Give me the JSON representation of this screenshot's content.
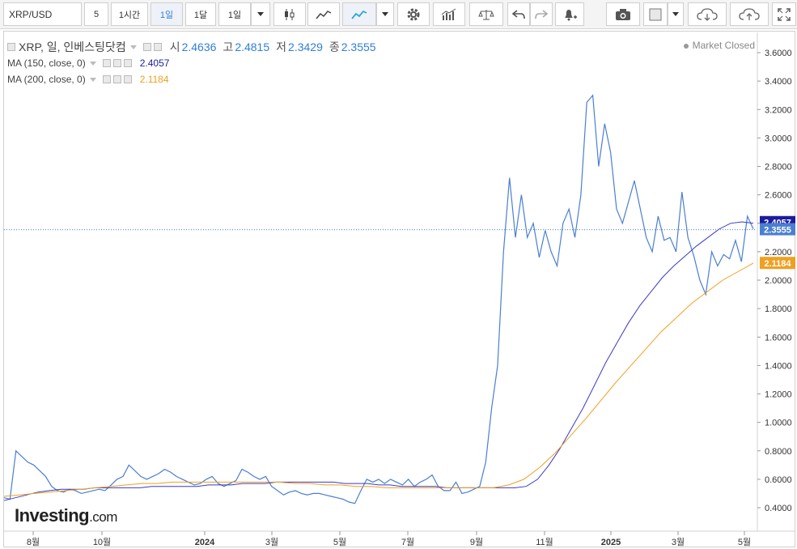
{
  "toolbar": {
    "symbol": "XRP/USD",
    "compare_count": "5",
    "interval_1h": "1시간",
    "interval_1d": "1일",
    "interval_1mo": "1달",
    "interval_sel": "1일",
    "icons": [
      "candlestick-icon",
      "line-chart-icon",
      "area-chart-icon",
      "dropdown-icon",
      "gear-icon",
      "indicators-icon",
      "scale-icon",
      "undo-icon",
      "redo-icon",
      "alert-bell-icon",
      "camera-icon",
      "fill-color-icon",
      "cloud-download-icon",
      "cloud-upload-icon",
      "fullscreen-icon"
    ]
  },
  "legend": {
    "title": "XRP, 일, 인베스팅닷컴",
    "open_label": "시",
    "open": "2.4636",
    "high_label": "고",
    "high": "2.4815",
    "low_label": "저",
    "low": "2.3429",
    "close_label": "종",
    "close": "2.3555",
    "ma150_label": "MA (150, close, 0)",
    "ma150_value": "2.4057",
    "ma200_label": "MA (200, close, 0)",
    "ma200_value": "2.1184"
  },
  "status": "Market Closed",
  "logo": {
    "main": "Investing",
    "suffix": ".com"
  },
  "colors": {
    "price": "#4a7fd0",
    "ma150": "#3a3acb",
    "ma200": "#f0a020",
    "price_tag": "#4a7fd0",
    "ma150_tag": "#1c1c9c",
    "ma200_tag": "#f0a020"
  },
  "chart_data": {
    "type": "line",
    "x_ticks": [
      "8월",
      "10월",
      "2024",
      "3월",
      "5월",
      "7월",
      "9월",
      "11월",
      "2025",
      "3월",
      "5월"
    ],
    "y_ticks": [
      "0.4000",
      "0.6000",
      "0.8000",
      "1.0000",
      "1.2000",
      "1.4000",
      "1.6000",
      "1.8000",
      "2.0000",
      "2.2000",
      "2.4000",
      "2.6000",
      "2.8000",
      "3.0000",
      "3.2000",
      "3.4000",
      "3.6000"
    ],
    "ylim": [
      0.4,
      3.6
    ],
    "last_price": "2.3555",
    "price_tag": "2.3555",
    "ma150_tag": "2.4057",
    "ma200_tag": "2.1184",
    "series": [
      {
        "name": "XRP",
        "values": [
          0.47,
          0.46,
          0.8,
          0.76,
          0.72,
          0.7,
          0.66,
          0.62,
          0.55,
          0.52,
          0.51,
          0.53,
          0.52,
          0.5,
          0.51,
          0.52,
          0.53,
          0.52,
          0.56,
          0.6,
          0.62,
          0.7,
          0.66,
          0.62,
          0.6,
          0.62,
          0.64,
          0.67,
          0.65,
          0.62,
          0.6,
          0.58,
          0.56,
          0.57,
          0.6,
          0.62,
          0.57,
          0.55,
          0.57,
          0.59,
          0.67,
          0.65,
          0.62,
          0.6,
          0.62,
          0.55,
          0.52,
          0.49,
          0.51,
          0.52,
          0.5,
          0.49,
          0.5,
          0.5,
          0.49,
          0.48,
          0.47,
          0.46,
          0.44,
          0.43,
          0.52,
          0.6,
          0.58,
          0.6,
          0.57,
          0.6,
          0.58,
          0.56,
          0.6,
          0.55,
          0.58,
          0.6,
          0.63,
          0.55,
          0.52,
          0.52,
          0.58,
          0.5,
          0.51,
          0.53,
          0.55,
          0.72,
          1.1,
          1.4,
          2.2,
          2.72,
          2.3,
          2.6,
          2.3,
          2.4,
          2.16,
          2.35,
          2.2,
          2.1,
          2.4,
          2.5,
          2.3,
          2.6,
          3.25,
          3.3,
          2.8,
          3.1,
          2.9,
          2.5,
          2.4,
          2.55,
          2.7,
          2.5,
          2.3,
          2.2,
          2.45,
          2.28,
          2.3,
          2.2,
          2.62,
          2.3,
          2.17,
          2.0,
          1.9,
          2.2,
          2.1,
          2.18,
          2.15,
          2.28,
          2.13,
          2.45,
          2.36
        ],
        "x_range": [
          2023.55,
          2025.35
        ]
      },
      {
        "name": "MA (150, close, 0)",
        "values": [
          0.45,
          0.47,
          0.49,
          0.51,
          0.52,
          0.53,
          0.53,
          0.53,
          0.54,
          0.54,
          0.54,
          0.54,
          0.54,
          0.55,
          0.55,
          0.55,
          0.55,
          0.55,
          0.56,
          0.56,
          0.56,
          0.57,
          0.57,
          0.57,
          0.58,
          0.58,
          0.58,
          0.58,
          0.58,
          0.58,
          0.57,
          0.57,
          0.57,
          0.56,
          0.56,
          0.55,
          0.55,
          0.55,
          0.55,
          0.54,
          0.54,
          0.54,
          0.54,
          0.54,
          0.54,
          0.54,
          0.55,
          0.6,
          0.7,
          0.82,
          0.96,
          1.1,
          1.26,
          1.42,
          1.56,
          1.7,
          1.82,
          1.92,
          2.02,
          2.1,
          2.17,
          2.24,
          2.3,
          2.36,
          2.4,
          2.41,
          2.4
        ],
        "x_range": [
          2023.55,
          2025.35
        ]
      },
      {
        "name": "MA (200, close, 0)",
        "values": [
          0.48,
          0.49,
          0.5,
          0.51,
          0.52,
          0.53,
          0.54,
          0.55,
          0.56,
          0.57,
          0.57,
          0.58,
          0.58,
          0.58,
          0.58,
          0.58,
          0.58,
          0.58,
          0.58,
          0.57,
          0.57,
          0.56,
          0.56,
          0.55,
          0.55,
          0.54,
          0.54,
          0.54,
          0.54,
          0.54,
          0.54,
          0.54,
          0.54,
          0.56,
          0.6,
          0.68,
          0.78,
          0.9,
          1.02,
          1.15,
          1.28,
          1.4,
          1.52,
          1.64,
          1.74,
          1.84,
          1.92,
          2.0,
          2.06,
          2.12
        ],
        "x_range": [
          2023.55,
          2025.35
        ]
      }
    ]
  }
}
